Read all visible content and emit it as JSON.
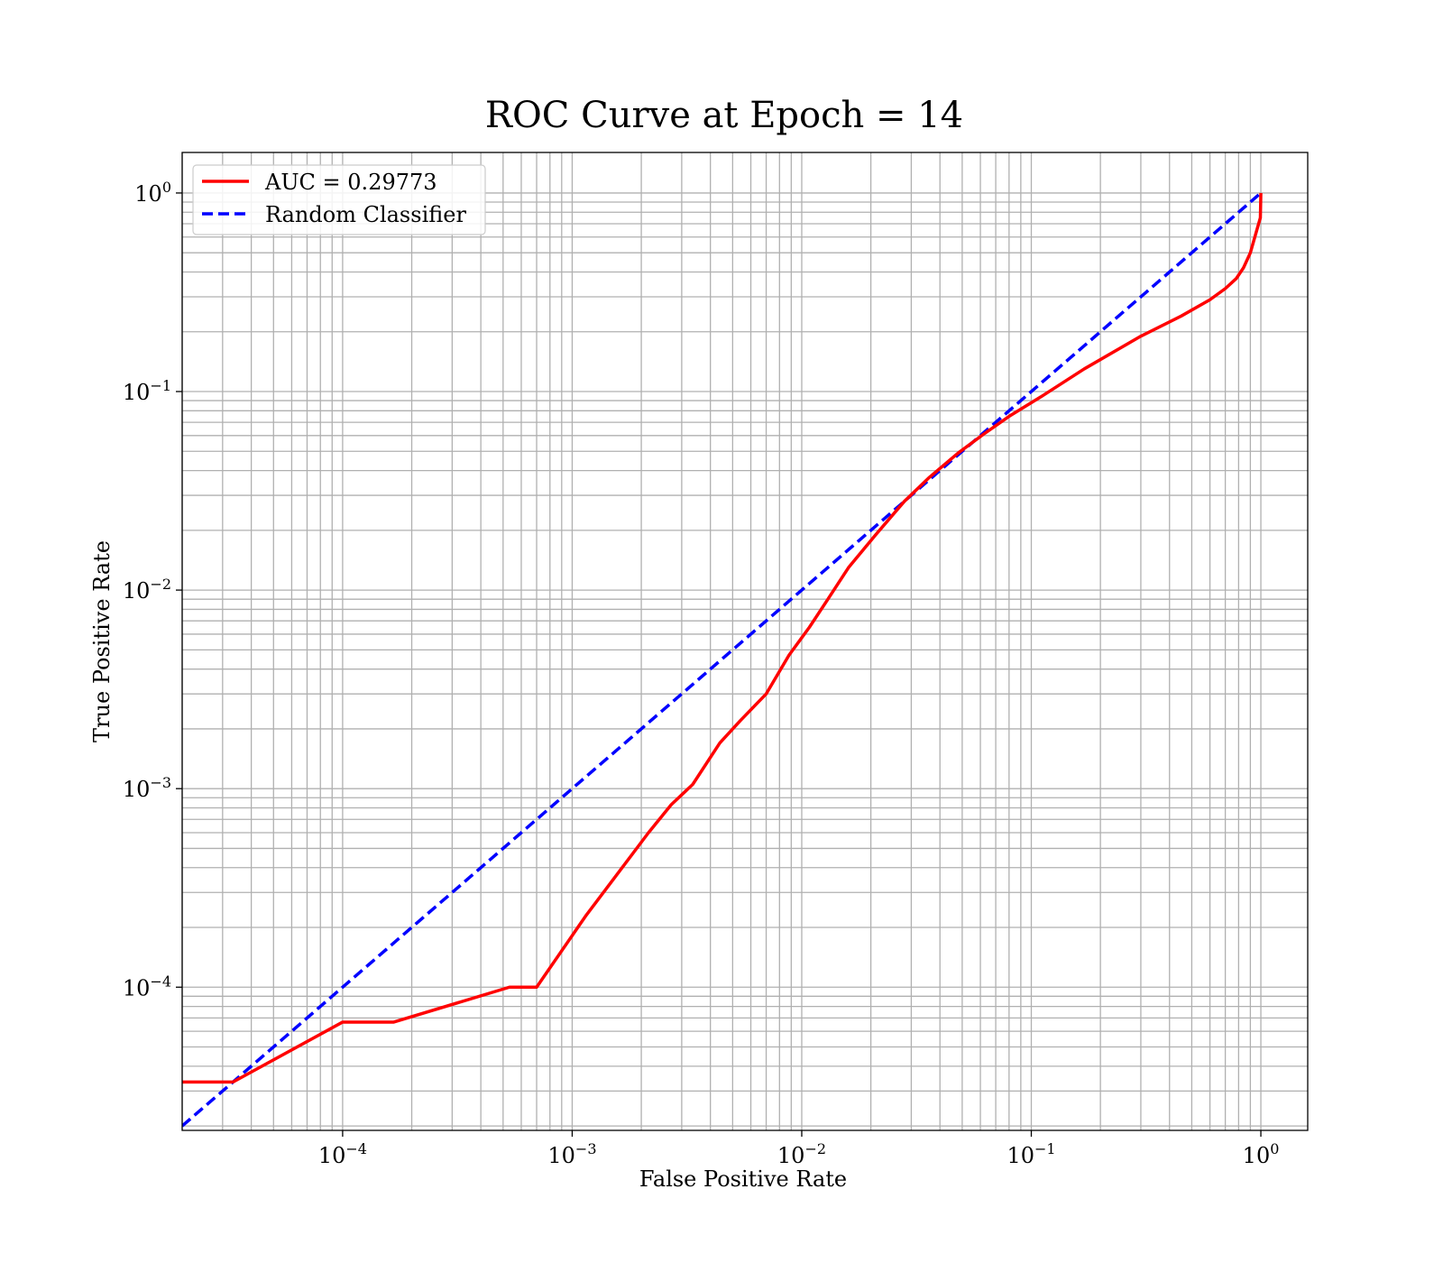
{
  "chart_data": {
    "type": "line",
    "title": "ROC Curve at Epoch = 14",
    "xlabel": "False Positive Rate",
    "ylabel": "True Positive Rate",
    "xscale": "log",
    "yscale": "log",
    "xlim": [
      2e-05,
      1.6
    ],
    "ylim": [
      1.9e-05,
      1.6
    ],
    "grid": "major and minor",
    "legend_position": "upper-left",
    "x_ticks": [
      {
        "value": 0.0001,
        "base": "10",
        "exp": "−4"
      },
      {
        "value": 0.001,
        "base": "10",
        "exp": "−3"
      },
      {
        "value": 0.01,
        "base": "10",
        "exp": "−2"
      },
      {
        "value": 0.1,
        "base": "10",
        "exp": "−1"
      },
      {
        "value": 1,
        "base": "10",
        "exp": "0"
      }
    ],
    "y_ticks": [
      {
        "value": 0.0001,
        "base": "10",
        "exp": "−4"
      },
      {
        "value": 0.001,
        "base": "10",
        "exp": "−3"
      },
      {
        "value": 0.01,
        "base": "10",
        "exp": "−2"
      },
      {
        "value": 0.1,
        "base": "10",
        "exp": "−1"
      },
      {
        "value": 1,
        "base": "10",
        "exp": "0"
      }
    ],
    "series": [
      {
        "name": "AUC = 0.29773",
        "color": "#ff0000",
        "style": "solid",
        "x": [
          2e-05,
          3.33e-05,
          0.0001,
          0.000167,
          0.000533,
          0.0007,
          0.00115,
          0.00165,
          0.00215,
          0.0027,
          0.00335,
          0.0044,
          0.0054,
          0.007,
          0.0088,
          0.0108,
          0.013,
          0.016,
          0.021,
          0.028,
          0.036,
          0.048,
          0.062,
          0.08,
          0.11,
          0.17,
          0.3,
          0.45,
          0.6,
          0.7,
          0.78,
          0.84,
          0.9,
          0.96,
          0.995,
          1.0
        ],
        "y": [
          3.33e-05,
          3.33e-05,
          6.67e-05,
          6.67e-05,
          0.0001,
          0.0001,
          0.00023,
          0.0004,
          0.0006,
          0.00083,
          0.00105,
          0.0017,
          0.0022,
          0.003,
          0.0047,
          0.0065,
          0.009,
          0.013,
          0.019,
          0.028,
          0.037,
          0.049,
          0.061,
          0.075,
          0.094,
          0.13,
          0.19,
          0.24,
          0.29,
          0.33,
          0.37,
          0.42,
          0.5,
          0.65,
          0.75,
          1.0
        ]
      },
      {
        "name": "Random Classifier",
        "color": "#0000ff",
        "style": "dashed",
        "x": [
          2e-05,
          1.0
        ],
        "y": [
          2e-05,
          1.0
        ]
      }
    ]
  }
}
